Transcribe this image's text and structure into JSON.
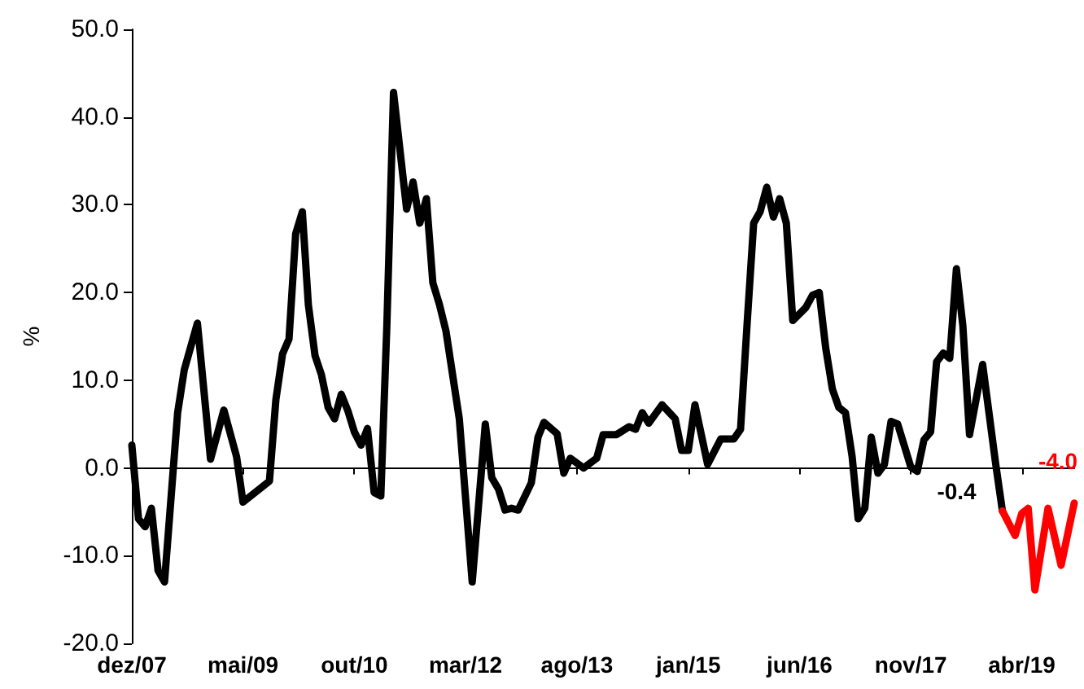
{
  "chart_data": {
    "type": "line",
    "ylabel": "%",
    "xlim": [
      "2007-12",
      "2019-12"
    ],
    "xticks": [
      {
        "value": "2007-12",
        "label": "dez/07"
      },
      {
        "value": "2009-05",
        "label": "mai/09"
      },
      {
        "value": "2010-10",
        "label": "out/10"
      },
      {
        "value": "2012-03",
        "label": "mar/12"
      },
      {
        "value": "2013-08",
        "label": "ago/13"
      },
      {
        "value": "2015-01",
        "label": "jan/15"
      },
      {
        "value": "2016-06",
        "label": "jun/16"
      },
      {
        "value": "2017-11",
        "label": "nov/17"
      },
      {
        "value": "2019-04",
        "label": "abr/19"
      }
    ],
    "ylim": [
      -20,
      50
    ],
    "yticks": [
      {
        "value": -20,
        "label": "-20.0"
      },
      {
        "value": -10,
        "label": "-10.0"
      },
      {
        "value": 0,
        "label": "0.0"
      },
      {
        "value": 10,
        "label": "10.0"
      },
      {
        "value": 20,
        "label": "20.0"
      },
      {
        "value": 30,
        "label": "30.0"
      },
      {
        "value": 40,
        "label": "40.0"
      },
      {
        "value": 50,
        "label": "50.0"
      }
    ],
    "marker": "none",
    "line_style": "solid",
    "annotations": [
      {
        "text": "-0.4",
        "x": "2018-12",
        "y": -0.4
      }
    ],
    "series": [
      {
        "color": "#000000",
        "x": [
          "2007-12",
          "2008-01",
          "2008-02",
          "2008-03",
          "2008-04",
          "2008-05",
          "2008-07",
          "2008-08",
          "2008-10",
          "2008-12",
          "2009-02",
          "2009-04",
          "2009-05",
          "2009-09",
          "2009-10",
          "2009-11",
          "2009-12",
          "2010-01",
          "2010-02",
          "2010-03",
          "2010-04",
          "2010-05",
          "2010-06",
          "2010-07",
          "2010-08",
          "2010-09",
          "2010-10",
          "2010-11",
          "2010-12",
          "2011-01",
          "2011-02",
          "2011-03",
          "2011-04",
          "2011-06",
          "2011-07",
          "2011-08",
          "2011-09",
          "2011-10",
          "2011-11",
          "2011-12",
          "2012-02",
          "2012-04",
          "2012-06",
          "2012-07",
          "2012-08",
          "2012-09",
          "2012-10",
          "2012-11",
          "2013-01",
          "2013-02",
          "2013-03",
          "2013-05",
          "2013-06",
          "2013-07",
          "2013-09",
          "2013-11",
          "2013-12",
          "2014-02",
          "2014-04",
          "2014-05",
          "2014-06",
          "2014-07",
          "2014-09",
          "2014-11",
          "2014-12",
          "2015-01",
          "2015-02",
          "2015-04",
          "2015-06",
          "2015-08",
          "2015-09",
          "2015-10",
          "2015-11",
          "2015-12",
          "2016-01",
          "2016-02",
          "2016-03",
          "2016-04",
          "2016-05",
          "2016-07",
          "2016-08",
          "2016-09",
          "2016-10",
          "2016-11",
          "2016-12",
          "2017-01",
          "2017-02",
          "2017-03",
          "2017-04",
          "2017-05",
          "2017-06",
          "2017-07",
          "2017-08",
          "2017-09",
          "2017-11",
          "2017-12",
          "2018-01",
          "2018-02",
          "2018-03",
          "2018-04",
          "2018-05",
          "2018-06",
          "2018-07",
          "2018-08",
          "2018-10",
          "2018-12",
          "2019-01"
        ],
        "values": [
          2.6,
          -5.8,
          -6.7,
          -4.6,
          -11.7,
          -13,
          6.3,
          11.2,
          16.5,
          1,
          6.6,
          1.3,
          -3.9,
          -1.5,
          7.8,
          13,
          14.7,
          26.7,
          29.2,
          18.6,
          12.8,
          10.6,
          6.9,
          5.6,
          8.4,
          6.5,
          4.1,
          2.6,
          4.5,
          -2.8,
          -3.2,
          16.2,
          42.8,
          29.5,
          32.6,
          27.9,
          30.7,
          21.1,
          18.6,
          15.6,
          5.6,
          -13,
          5,
          -1.1,
          -2.4,
          -4.8,
          -4.6,
          -4.8,
          -1.7,
          3.5,
          5.2,
          3.9,
          -0.6,
          1.1,
          0,
          1.1,
          3.8,
          3.8,
          4.7,
          4.4,
          6.3,
          5.1,
          7.2,
          5.6,
          2,
          2,
          7.2,
          0.4,
          3.3,
          3.3,
          4.4,
          16.2,
          27.9,
          29.2,
          32,
          28.6,
          30.7,
          27.9,
          16.8,
          18.3,
          19.7,
          20,
          13.7,
          9,
          6.9,
          6.3,
          1.3,
          -5.8,
          -4.6,
          3.5,
          -0.6,
          0.4,
          5.3,
          5,
          0.1,
          -0.4,
          3.2,
          4.1,
          12.1,
          13.1,
          12.5,
          22.7,
          16.2,
          3.8,
          11.8,
          0.4,
          -4.9
        ]
      },
      {
        "color": "#ff0000",
        "x": [
          "2019-01",
          "2019-03",
          "2019-04",
          "2019-05",
          "2019-06",
          "2019-08",
          "2019-10",
          "2019-12"
        ],
        "values": [
          -4.9,
          -7.7,
          -5.2,
          -4.6,
          -13.9,
          -4.6,
          -11.1,
          -4.0
        ],
        "value_labels": [
          null,
          null,
          null,
          null,
          null,
          null,
          null,
          "-4.0"
        ]
      }
    ]
  }
}
